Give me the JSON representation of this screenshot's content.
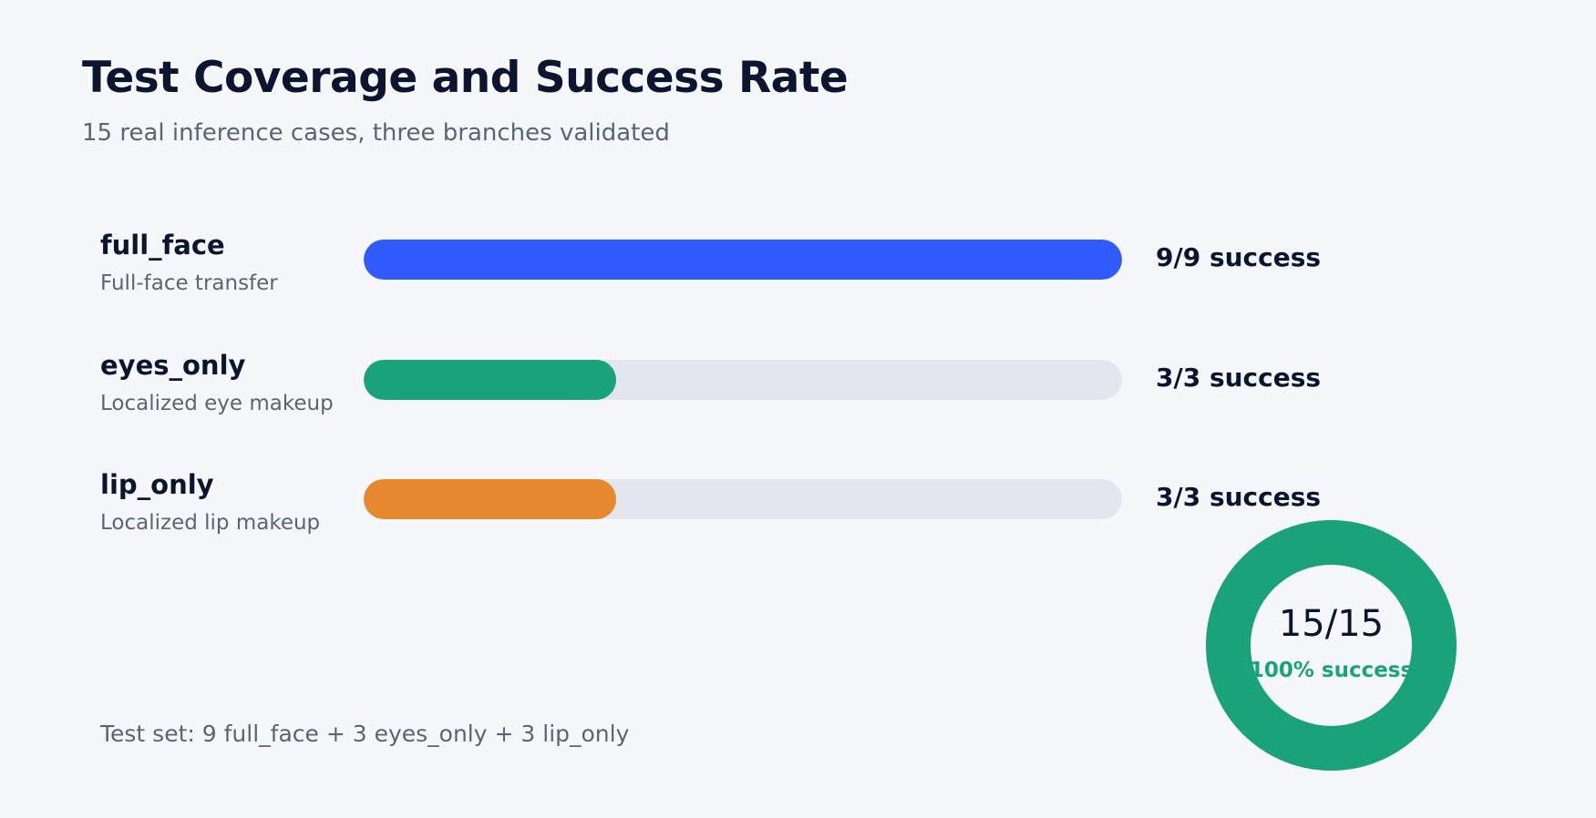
{
  "header": {
    "title": "Test Coverage and Success Rate",
    "subtitle": "15 real inference cases, three branches validated"
  },
  "chart_data": {
    "type": "bar",
    "orientation": "horizontal",
    "max": 9,
    "categories": [
      "full_face",
      "eyes_only",
      "lip_only"
    ],
    "descriptions": [
      "Full-face transfer",
      "Localized eye makeup",
      "Localized lip makeup"
    ],
    "values": [
      9,
      3,
      3
    ],
    "totals": [
      9,
      3,
      3
    ],
    "bar_labels": [
      "9/9 success",
      "3/3 success",
      "3/3 success"
    ],
    "colors": [
      "#2f5bff",
      "#1aa37a",
      "#e6882e"
    ],
    "track_color": "#e3e6ee"
  },
  "summary": {
    "type": "donut",
    "passed": 15,
    "total": 15,
    "total_label": "15/15",
    "success_label": "100% success",
    "color": "#1aa37a"
  },
  "footnote": "Test set:  9 full_face + 3 eyes_only + 3 lip_only"
}
